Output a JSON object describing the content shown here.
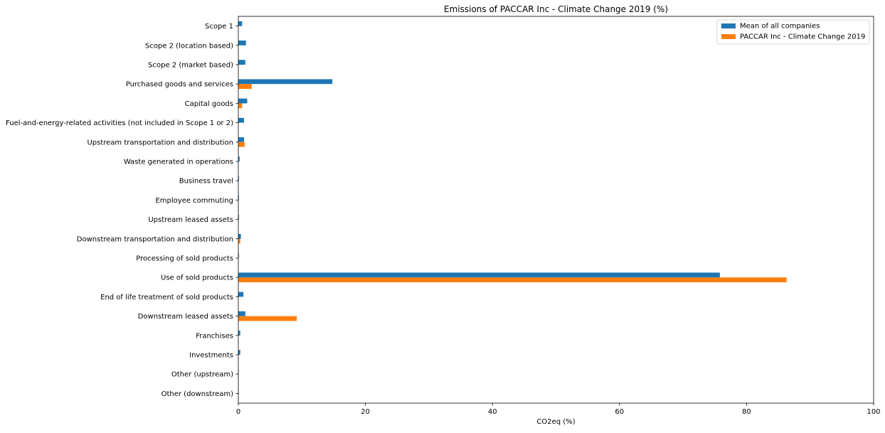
{
  "chart_data": {
    "type": "bar",
    "orientation": "horizontal",
    "title": "Emissions of PACCAR Inc - Climate Change 2019 (%)",
    "xlabel": "CO2eq (%)",
    "ylabel": "",
    "xlim": [
      0,
      100
    ],
    "xticks": [
      0,
      20,
      40,
      60,
      80,
      100
    ],
    "grid": false,
    "legend_position": "top-right",
    "categories": [
      "Scope 1",
      "Scope 2 (location based)",
      "Scope 2 (market based)",
      "Purchased goods and services",
      "Capital goods",
      "Fuel-and-energy-related activities (not included in Scope 1 or 2)",
      "Upstream transportation and distribution",
      "Waste generated in operations",
      "Business travel",
      "Employee commuting",
      "Upstream leased assets",
      "Downstream transportation and distribution",
      "Processing of sold products",
      "Use of sold products",
      "End of life treatment of sold products",
      "Downstream leased assets",
      "Franchises",
      "Investments",
      "Other (upstream)",
      "Other (downstream)"
    ],
    "series": [
      {
        "name": "Mean of all companies",
        "color": "#1f77b4",
        "values": [
          0.6,
          1.2,
          1.1,
          14.8,
          1.4,
          0.9,
          0.9,
          0.2,
          0.1,
          0.1,
          0.1,
          0.4,
          0.1,
          75.8,
          0.8,
          1.1,
          0.3,
          0.3,
          0.05,
          0.05
        ]
      },
      {
        "name": "PACCAR Inc - Climate Change 2019",
        "color": "#ff7f0e",
        "values": [
          0.0,
          0.0,
          0.0,
          2.1,
          0.6,
          0.0,
          1.0,
          0.0,
          0.0,
          0.0,
          0.0,
          0.3,
          0.0,
          86.3,
          0.0,
          9.2,
          0.0,
          0.0,
          0.0,
          0.0
        ]
      }
    ]
  }
}
